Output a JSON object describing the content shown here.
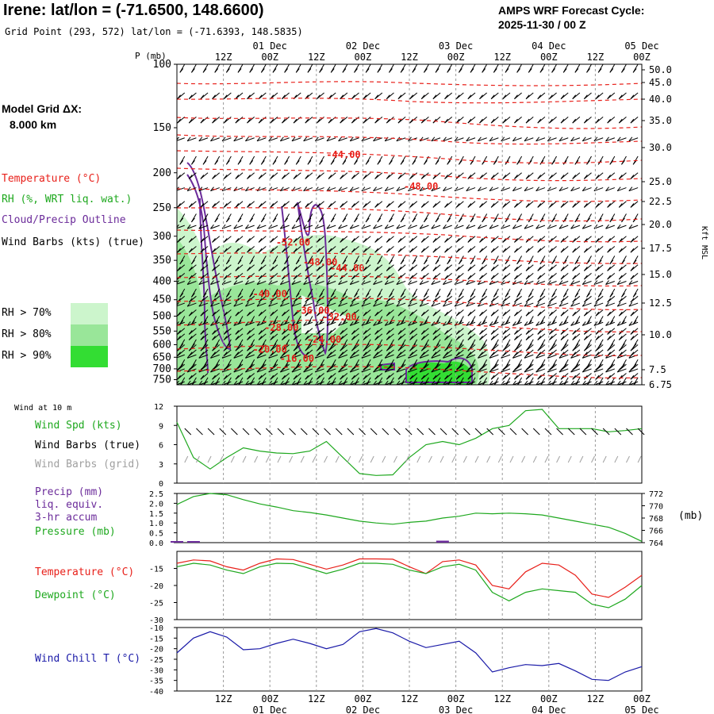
{
  "header": {
    "title": "Irene:  lat/lon = (-71.6500, 148.6600)",
    "subtitle": "Grid Point (293, 572) lat/lon = (-71.6393, 148.5835)",
    "cycle_line1": "AMPS WRF Forecast Cycle:",
    "cycle_line2": "2025-11-30 / 00  Z"
  },
  "colors": {
    "temperature": "#e8201a",
    "rh": "#1ea81e",
    "cloud": "#6b2b9a",
    "wind": "#000000",
    "wind_grid": "#a0a0a0",
    "windchill": "#1a1aa8",
    "rh70": "#ccf5cc",
    "rh80": "#99e699",
    "rh90": "#33dd33"
  },
  "left_legend": {
    "grid_label_line1": "Model Grid ΔX:",
    "grid_label_line2": "8.000 km",
    "temperature": "Temperature (°C)",
    "rh": "RH (%, WRT liq. wat.)",
    "cloud": "Cloud/Precip Outline",
    "wind_barbs": "Wind Barbs (kts) (true)",
    "rh70": "RH > 70%",
    "rh80": "RH > 80%",
    "rh90": "RH > 90%"
  },
  "time_axis": {
    "top_ticks": [
      "12Z",
      "00Z",
      "12Z",
      "00Z",
      "12Z",
      "00Z",
      "12Z",
      "00Z",
      "12Z",
      "00Z"
    ],
    "top_dates": [
      "01 Dec",
      "02 Dec",
      "03 Dec",
      "04 Dec",
      "05 Dec"
    ],
    "bottom_ticks": [
      "12Z",
      "00Z",
      "12Z",
      "00Z",
      "12Z",
      "00Z",
      "12Z",
      "00Z",
      "12Z",
      "00Z"
    ],
    "bottom_dates": [
      "01 Dec",
      "02 Dec",
      "03 Dec",
      "04 Dec",
      "05 Dec"
    ]
  },
  "chart_data": [
    {
      "type": "heatmap",
      "title": "",
      "ylabel_left": "P (mb)",
      "ylabel_right": "Kft MSL",
      "pressure_ticks": [
        100,
        150,
        200,
        250,
        300,
        350,
        400,
        450,
        500,
        550,
        600,
        650,
        700,
        750
      ],
      "height_ticks_kft": [
        "50.0",
        "45.0",
        "40.0",
        "35.0",
        "30.0",
        "25.0",
        "22.5",
        "20.0",
        "17.5",
        "15.0",
        "12.5",
        "10.0",
        "7.5",
        "6.75"
      ],
      "temperature_contour_labels": [
        {
          "label": "-44.00",
          "time_h": 43,
          "p": 178
        },
        {
          "label": "-48.00",
          "time_h": 63,
          "p": 218
        },
        {
          "label": "-52.00",
          "time_h": 30,
          "p": 312
        },
        {
          "label": "-48.00",
          "time_h": 37,
          "p": 354
        },
        {
          "label": "-44.00",
          "time_h": 44,
          "p": 368
        },
        {
          "label": "-40.00",
          "time_h": 24,
          "p": 434
        },
        {
          "label": "-36.00",
          "time_h": 35,
          "p": 483
        },
        {
          "label": "-32.00",
          "time_h": 42,
          "p": 502
        },
        {
          "label": "-28.00",
          "time_h": 27,
          "p": 538
        },
        {
          "label": "-24.00",
          "time_h": 38,
          "p": 581
        },
        {
          "label": "-20.00",
          "time_h": 24,
          "p": 618
        },
        {
          "label": "-16.00",
          "time_h": 31,
          "p": 655
        }
      ]
    },
    {
      "type": "line",
      "title": "Wind at 10 m",
      "series": [
        {
          "name": "Wind Spd (kts)",
          "values": [
            9.5,
            4.0,
            2.2,
            4.0,
            5.5,
            5.0,
            4.7,
            4.6,
            5.0,
            6.5,
            4.0,
            1.5,
            1.2,
            1.3,
            4.0,
            6.0,
            6.5,
            6.0,
            7.0,
            8.5,
            9.0,
            11.3,
            11.5,
            8.5,
            8.5,
            8.5,
            8.0,
            8.2,
            8.5
          ]
        }
      ],
      "ylim": [
        0,
        12
      ],
      "yticks": [
        0,
        3,
        6,
        9,
        12
      ],
      "legend": [
        "Wind Spd (kts)",
        "Wind Barbs (true)",
        "Wind Barbs (grid)"
      ]
    },
    {
      "type": "line",
      "series": [
        {
          "name": "Pressure (mb)",
          "values": [
            770.2,
            771.5,
            772.0,
            771.8,
            771.0,
            770.3,
            769.8,
            769.2,
            768.9,
            768.5,
            768.0,
            767.5,
            767.2,
            767.0,
            767.3,
            767.5,
            768.0,
            768.3,
            768.8,
            768.7,
            768.8,
            768.7,
            768.5,
            768.0,
            767.5,
            767.0,
            766.5,
            765.5,
            764.2
          ]
        },
        {
          "name": "Precip (mm)",
          "values": [
            0.05,
            0.02,
            0,
            0,
            0,
            0,
            0,
            0,
            0,
            0,
            0,
            0,
            0,
            0,
            0,
            0,
            0.1,
            0,
            0,
            0,
            0,
            0,
            0,
            0,
            0,
            0,
            0,
            0,
            0
          ]
        }
      ],
      "ylim_left": [
        0,
        2.5
      ],
      "yticks_left": [
        "0.0",
        "0.5",
        "1.0",
        "1.5",
        "2.0",
        "2.5"
      ],
      "ylim_right": [
        764,
        772
      ],
      "yticks_right": [
        "764",
        "766",
        "768",
        "770",
        "772"
      ],
      "right_unit": "(mb)",
      "legend": [
        "Precip (mm)",
        "liq. equiv.",
        "3-hr accum",
        "Pressure (mb)"
      ]
    },
    {
      "type": "line",
      "series": [
        {
          "name": "Temperature (°C)",
          "values": [
            -13.5,
            -12.5,
            -12.8,
            -14.5,
            -15.5,
            -13.5,
            -12.2,
            -12.4,
            -13.8,
            -15.2,
            -14.0,
            -12.2,
            -12.2,
            -12.3,
            -14.5,
            -16.5,
            -13.0,
            -12.5,
            -14.0,
            -20.0,
            -21.0,
            -16.0,
            -13.5,
            -14.0,
            -17.0,
            -22.5,
            -23.5,
            -20.5,
            -17.0
          ]
        },
        {
          "name": "Dewpoint (°C)",
          "values": [
            -14.5,
            -13.5,
            -14.0,
            -15.5,
            -16.5,
            -14.5,
            -13.5,
            -13.6,
            -15.0,
            -16.5,
            -15.2,
            -13.5,
            -13.5,
            -13.8,
            -15.5,
            -16.5,
            -14.5,
            -13.8,
            -15.5,
            -22.0,
            -24.5,
            -22.0,
            -21.0,
            -21.5,
            -22.0,
            -25.5,
            -26.5,
            -24.0,
            -20.0
          ]
        }
      ],
      "ylim": [
        -30,
        -10
      ],
      "yticks": [
        "-15",
        "-20",
        "-25",
        "-30"
      ],
      "legend": [
        "Temperature (°C)",
        "Dewpoint (°C)"
      ]
    },
    {
      "type": "line",
      "series": [
        {
          "name": "Wind Chill T (°C)",
          "values": [
            -22.0,
            -15.0,
            -12.0,
            -14.5,
            -20.5,
            -20.0,
            -17.5,
            -15.5,
            -17.5,
            -20.0,
            -18.0,
            -12.0,
            -10.5,
            -12.5,
            -16.5,
            -19.5,
            -18.0,
            -16.5,
            -22.0,
            -31.0,
            -29.0,
            -27.5,
            -28.0,
            -27.0,
            -30.5,
            -34.5,
            -35.0,
            -31.0,
            -28.5
          ]
        }
      ],
      "ylim": [
        -40,
        -10
      ],
      "yticks": [
        "-10",
        "-15",
        "-20",
        "-25",
        "-30",
        "-35",
        "-40"
      ],
      "legend": [
        "Wind Chill T (°C)"
      ]
    }
  ]
}
